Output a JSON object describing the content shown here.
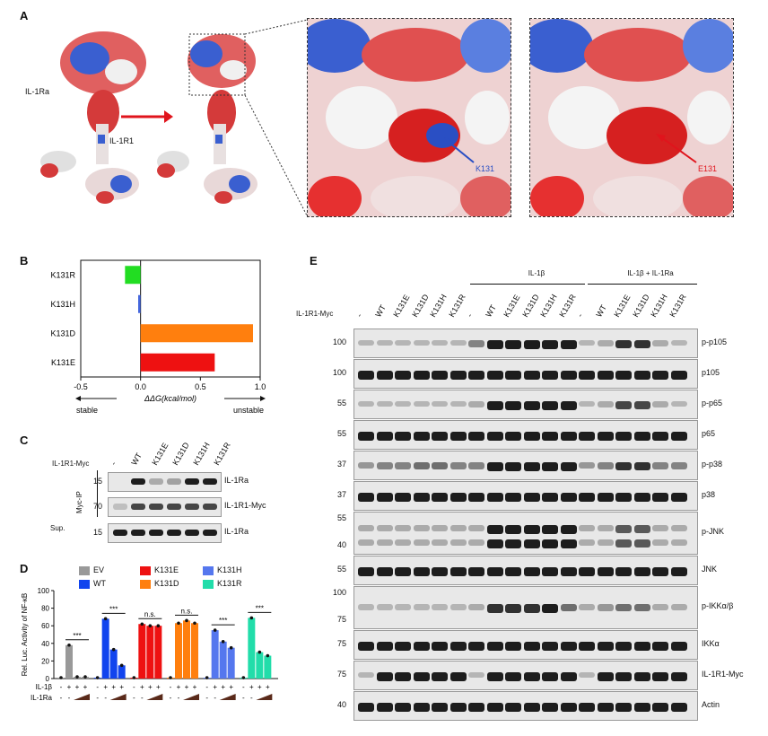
{
  "panels": {
    "A": "A",
    "B": "B",
    "C": "C",
    "D": "D",
    "E": "E"
  },
  "panelA": {
    "il1ra_label": "IL-1Ra",
    "il1r1_label": "IL-1R1",
    "k131_label": "K131",
    "e131_label": "E131",
    "colors": {
      "positive": "#2b4fc4",
      "negative": "#d8141c",
      "arrow": "#e0141c"
    }
  },
  "chart_data": [
    {
      "type": "bar",
      "orientation": "horizontal",
      "categories": [
        "K131R",
        "K131H",
        "K131D",
        "K131E"
      ],
      "values": [
        -0.13,
        -0.02,
        0.94,
        0.62
      ],
      "colors": [
        "#22dd22",
        "#4466dd",
        "#ff7f0e",
        "#ee1111"
      ],
      "xlabel": "ΔΔG(kcal/mol)",
      "xlim": [
        -0.5,
        1.0
      ],
      "xticks": [
        "-0.5",
        "0.0",
        "0.5",
        "1.0"
      ],
      "annotations": [
        "stable",
        "unstable"
      ]
    },
    {
      "type": "bar",
      "ylabel": "Rel. Luc. Activity of NF-κB",
      "ylim": [
        0,
        100
      ],
      "yticks": [
        "0",
        "20",
        "40",
        "60",
        "80",
        "100"
      ],
      "groups": [
        "EV",
        "WT",
        "K131E",
        "K131D",
        "K131H",
        "K131R"
      ],
      "group_colors": [
        "#999999",
        "#1144ee",
        "#ee1111",
        "#ff7f0e",
        "#5577ee",
        "#22ddaa"
      ],
      "values": [
        [
          1,
          38,
          2,
          2
        ],
        [
          1,
          68,
          33,
          15
        ],
        [
          1,
          62,
          60,
          60
        ],
        [
          1,
          63,
          66,
          63
        ],
        [
          1,
          55,
          42,
          35
        ],
        [
          1,
          69,
          30,
          26
        ]
      ],
      "significance": [
        "***",
        "***",
        "n.s.",
        "n.s.",
        "***",
        "***"
      ],
      "il1b_row": [
        "-",
        "+",
        "+",
        "+"
      ],
      "il1ra_row": [
        "-",
        "-"
      ],
      "il1b_label": "IL-1β",
      "il1ra_label": "IL-1Ra"
    }
  ],
  "panelC": {
    "header": "IL-1R1-Myc",
    "lanes": [
      "-",
      "WT",
      "K131E",
      "K131D",
      "K131H",
      "K131R"
    ],
    "side_ip": "Myc-IP",
    "side_sup": "Sup.",
    "mw": [
      "15",
      "70",
      "15"
    ],
    "rows": [
      "IL-1Ra",
      "IL-1R1-Myc",
      "IL-1Ra"
    ],
    "intensity": [
      [
        0,
        1,
        0.3,
        0.35,
        1,
        1
      ],
      [
        0.2,
        0.8,
        0.8,
        0.8,
        0.8,
        0.8
      ],
      [
        1,
        1,
        1,
        1,
        1,
        1
      ]
    ]
  },
  "legendD": [
    {
      "name": "EV",
      "color": "#999999"
    },
    {
      "name": "WT",
      "color": "#1144ee"
    },
    {
      "name": "K131E",
      "color": "#ee1111"
    },
    {
      "name": "K131D",
      "color": "#ff7f0e"
    },
    {
      "name": "K131H",
      "color": "#5577ee"
    },
    {
      "name": "K131R",
      "color": "#22ddaa"
    }
  ],
  "panelE": {
    "header_row": "IL-1R1-Myc",
    "group1": "IL-1β",
    "group2": "IL-1β + IL-1Ra",
    "lanes": [
      "-",
      "WT",
      "K131E",
      "K131D",
      "K131H",
      "K131R",
      "-",
      "WT",
      "K131E",
      "K131D",
      "K131H",
      "K131R",
      "-",
      "WT",
      "K131E",
      "K131D",
      "K131H",
      "K131R"
    ],
    "blots": [
      {
        "label": "p-p105",
        "mw": [
          "100"
        ],
        "pattern": [
          0.15,
          0.15,
          0.15,
          0.15,
          0.15,
          0.15,
          0.5,
          1,
          1,
          1,
          1,
          1,
          0.2,
          0.3,
          0.9,
          0.9,
          0.3,
          0.2
        ]
      },
      {
        "label": "p105",
        "mw": [
          "100"
        ],
        "pattern": [
          1,
          1,
          1,
          1,
          1,
          1,
          1,
          1,
          1,
          1,
          1,
          1,
          1,
          1,
          1,
          1,
          1,
          1
        ]
      },
      {
        "label": "p-p65",
        "mw": [
          "55"
        ],
        "pattern": [
          0.2,
          0.2,
          0.2,
          0.2,
          0.2,
          0.2,
          0.3,
          1,
          1,
          1,
          1,
          1,
          0.2,
          0.3,
          0.8,
          0.8,
          0.3,
          0.2
        ]
      },
      {
        "label": "p65",
        "mw": [
          "55"
        ],
        "pattern": [
          1,
          1,
          1,
          1,
          1,
          1,
          1,
          1,
          1,
          1,
          1,
          1,
          1,
          1,
          1,
          1,
          1,
          1
        ]
      },
      {
        "label": "p-p38",
        "mw": [
          "37"
        ],
        "pattern": [
          0.4,
          0.5,
          0.5,
          0.6,
          0.6,
          0.5,
          0.5,
          1,
          1,
          1,
          1,
          1,
          0.4,
          0.5,
          0.9,
          0.9,
          0.5,
          0.5
        ]
      },
      {
        "label": "p38",
        "mw": [
          "37"
        ],
        "pattern": [
          1,
          1,
          1,
          1,
          1,
          1,
          1,
          1,
          1,
          1,
          1,
          1,
          1,
          1,
          1,
          1,
          1,
          1
        ]
      },
      {
        "label": "p-JNK",
        "mw": [
          "55",
          "40"
        ],
        "pattern": [
          0.3,
          0.3,
          0.3,
          0.3,
          0.3,
          0.3,
          0.3,
          1,
          1,
          1,
          1,
          1,
          0.3,
          0.3,
          0.7,
          0.7,
          0.3,
          0.3
        ]
      },
      {
        "label": "JNK",
        "mw": [
          "55"
        ],
        "pattern": [
          1,
          1,
          1,
          1,
          1,
          1,
          1,
          1,
          1,
          1,
          1,
          1,
          1,
          1,
          1,
          1,
          1,
          1
        ]
      },
      {
        "label": "p-IKKα/β",
        "mw": [
          "100",
          "75"
        ],
        "pattern": [
          0.2,
          0.2,
          0.2,
          0.2,
          0.2,
          0.2,
          0.3,
          0.9,
          0.9,
          0.9,
          1,
          0.6,
          0.3,
          0.4,
          0.6,
          0.6,
          0.3,
          0.3
        ]
      },
      {
        "label": "IKKα",
        "mw": [
          "75"
        ],
        "pattern": [
          1,
          1,
          1,
          1,
          1,
          1,
          1,
          1,
          1,
          1,
          1,
          1,
          1,
          1,
          1,
          1,
          1,
          1
        ]
      },
      {
        "label": "IL-1R1-Myc",
        "mw": [
          "75"
        ],
        "pattern": [
          0.1,
          1,
          1,
          1,
          1,
          1,
          0.1,
          1,
          1,
          1,
          1,
          1,
          0.1,
          1,
          1,
          1,
          1,
          1
        ]
      },
      {
        "label": "Actin",
        "mw": [
          "40"
        ],
        "pattern": [
          1,
          1,
          1,
          1,
          1,
          1,
          1,
          1,
          1,
          1,
          1,
          1,
          1,
          1,
          1,
          1,
          1,
          1
        ]
      }
    ]
  }
}
